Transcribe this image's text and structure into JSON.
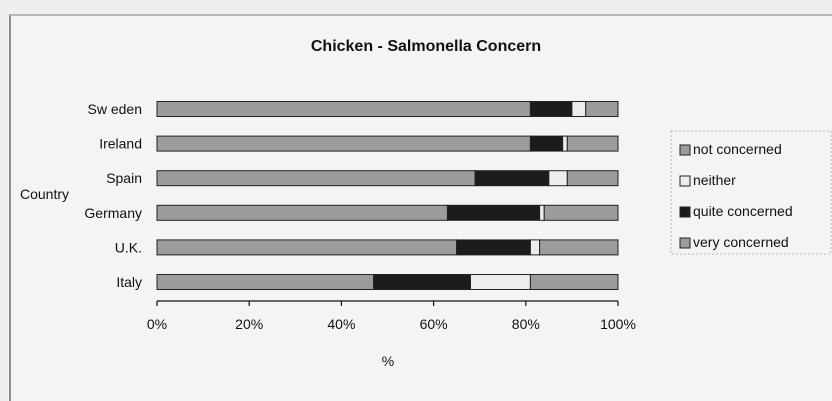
{
  "chart_data": {
    "type": "bar",
    "orientation": "horizontal",
    "stacked": true,
    "normalized": true,
    "title": "Chicken - Salmonella Concern",
    "ylabel": "Country",
    "xlabel": "%",
    "xlim": [
      0,
      100
    ],
    "x_ticks": [
      "0%",
      "20%",
      "40%",
      "60%",
      "80%",
      "100%"
    ],
    "categories": [
      "Sw eden",
      "Ireland",
      "Spain",
      "Germany",
      "U.K.",
      "Italy"
    ],
    "series": [
      {
        "name": "very concerned",
        "color": "#9c9c9c",
        "values": [
          81,
          81,
          69,
          63,
          65,
          47
        ]
      },
      {
        "name": "quite concerned",
        "color": "#1c1c1c",
        "values": [
          9,
          7,
          16,
          20,
          16,
          21
        ]
      },
      {
        "name": "neither",
        "color": "#ededed",
        "values": [
          3,
          1,
          4,
          1,
          2,
          13
        ]
      },
      {
        "name": "not concerned",
        "color": "#9c9c9c",
        "values": [
          7,
          11,
          11,
          16,
          17,
          19
        ]
      }
    ],
    "legend": {
      "position": "right",
      "order": [
        "not concerned",
        "neither",
        "quite concerned",
        "very concerned"
      ]
    },
    "grid": false
  }
}
